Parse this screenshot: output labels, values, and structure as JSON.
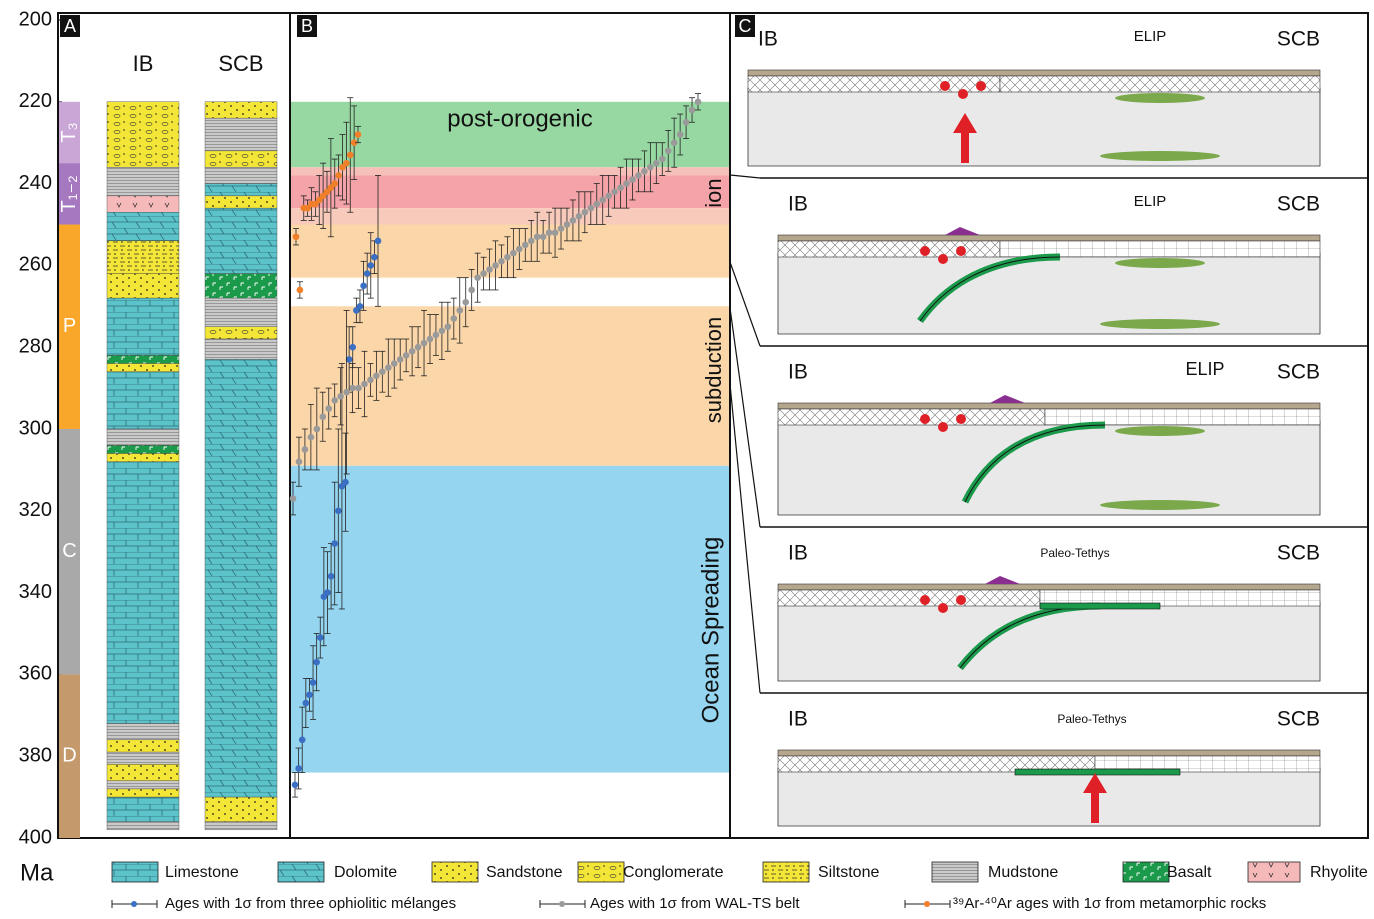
{
  "axis": {
    "unit": "Ma"
  },
  "panel_a": {
    "tag": "A",
    "periods": [
      {
        "label": "T₃",
        "from": 220,
        "to": 235,
        "color": "#c9a6d6"
      },
      {
        "label": "T₁₋₂",
        "from": 235,
        "to": 250,
        "color": "#a678c0"
      },
      {
        "label": "P",
        "from": 250,
        "to": 300,
        "color": "#f9a72b"
      },
      {
        "label": "C",
        "from": 300,
        "to": 360,
        "color": "#a9a9a9"
      },
      {
        "label": "D",
        "from": 360,
        "to": 400,
        "color": "#c49a6c"
      }
    ],
    "columns": [
      {
        "name": "IB",
        "layers": [
          {
            "top": 220,
            "bottom": 236,
            "rock": "Conglomerate"
          },
          {
            "top": 236,
            "bottom": 243,
            "rock": "Mudstone"
          },
          {
            "top": 243,
            "bottom": 247,
            "rock": "Rhyolite"
          },
          {
            "top": 247,
            "bottom": 254,
            "rock": "Dolomite"
          },
          {
            "top": 254,
            "bottom": 262,
            "rock": "Siltstone"
          },
          {
            "top": 262,
            "bottom": 268,
            "rock": "Sandstone"
          },
          {
            "top": 268,
            "bottom": 282,
            "rock": "Limestone"
          },
          {
            "top": 282,
            "bottom": 284,
            "rock": "Basalt"
          },
          {
            "top": 284,
            "bottom": 286,
            "rock": "Sandstone"
          },
          {
            "top": 286,
            "bottom": 300,
            "rock": "Limestone"
          },
          {
            "top": 300,
            "bottom": 304,
            "rock": "Mudstone"
          },
          {
            "top": 304,
            "bottom": 306,
            "rock": "Basalt"
          },
          {
            "top": 306,
            "bottom": 308,
            "rock": "Sandstone"
          },
          {
            "top": 308,
            "bottom": 372,
            "rock": "Limestone"
          },
          {
            "top": 372,
            "bottom": 376,
            "rock": "Mudstone"
          },
          {
            "top": 376,
            "bottom": 379,
            "rock": "Sandstone"
          },
          {
            "top": 379,
            "bottom": 382,
            "rock": "Mudstone"
          },
          {
            "top": 382,
            "bottom": 386,
            "rock": "Sandstone"
          },
          {
            "top": 386,
            "bottom": 388,
            "rock": "Mudstone"
          },
          {
            "top": 388,
            "bottom": 390,
            "rock": "Sandstone"
          },
          {
            "top": 390,
            "bottom": 396,
            "rock": "Limestone"
          },
          {
            "top": 396,
            "bottom": 398,
            "rock": "Mudstone"
          }
        ]
      },
      {
        "name": "SCB",
        "layers": [
          {
            "top": 220,
            "bottom": 224,
            "rock": "Sandstone"
          },
          {
            "top": 224,
            "bottom": 232,
            "rock": "Mudstone"
          },
          {
            "top": 232,
            "bottom": 236,
            "rock": "Conglomerate"
          },
          {
            "top": 236,
            "bottom": 240,
            "rock": "Mudstone"
          },
          {
            "top": 240,
            "bottom": 243,
            "rock": "Dolomite"
          },
          {
            "top": 243,
            "bottom": 246,
            "rock": "Sandstone"
          },
          {
            "top": 246,
            "bottom": 262,
            "rock": "Dolomite"
          },
          {
            "top": 262,
            "bottom": 268,
            "rock": "Basalt"
          },
          {
            "top": 268,
            "bottom": 275,
            "rock": "Mudstone"
          },
          {
            "top": 275,
            "bottom": 278,
            "rock": "Conglomerate"
          },
          {
            "top": 278,
            "bottom": 283,
            "rock": "Mudstone"
          },
          {
            "top": 283,
            "bottom": 390,
            "rock": "Dolomite"
          },
          {
            "top": 390,
            "bottom": 396,
            "rock": "Sandstone"
          },
          {
            "top": 396,
            "bottom": 398,
            "rock": "Mudstone"
          }
        ]
      }
    ]
  },
  "chart_data": {
    "type": "errorbar",
    "tag": "B",
    "ylim": [
      200,
      400
    ],
    "yticks": [
      200,
      220,
      240,
      260,
      280,
      300,
      320,
      340,
      360,
      380,
      400
    ],
    "bands": [
      {
        "from": 220,
        "to": 236,
        "color": "#97d8a2",
        "label": "post-orogenic"
      },
      {
        "from": 236,
        "to": 238,
        "color": "#f6c0b8"
      },
      {
        "from": 238,
        "to": 246,
        "color": "#f4a3a8",
        "label": "Collision"
      },
      {
        "from": 246,
        "to": 250,
        "color": "#f8cabc"
      },
      {
        "from": 250,
        "to": 263,
        "color": "#fbd6a8"
      },
      {
        "from": 270,
        "to": 309,
        "color": "#fbd6a8",
        "label": "subduction"
      },
      {
        "from": 309,
        "to": 384,
        "color": "#95d5ef",
        "label": "Ocean Spreading"
      }
    ],
    "series": [
      {
        "name": "Ages with 1σ from three ophiolitic mélanges",
        "color": "#3b6fc4",
        "values": [
          387,
          383,
          376,
          367,
          365,
          362,
          357,
          351,
          341,
          340,
          336,
          328,
          320,
          314,
          313,
          283,
          280,
          271,
          270,
          265,
          262,
          260,
          258,
          254
        ],
        "errors": [
          3,
          5,
          8,
          6,
          4,
          9,
          7,
          5,
          12,
          10,
          8,
          15,
          20,
          30,
          12,
          8,
          5,
          3,
          4,
          6,
          5,
          8,
          4,
          16
        ]
      },
      {
        "name": "Ages with 1σ from WAL-TS belt",
        "color": "#9a9a9a",
        "values": [
          317,
          308,
          305,
          302,
          300,
          297,
          295,
          293,
          292,
          291,
          290,
          290,
          289,
          288,
          287,
          286,
          285,
          284,
          283,
          282,
          281,
          280,
          279,
          278,
          277,
          276,
          275,
          273,
          271,
          269,
          266,
          263,
          262,
          261,
          260,
          259,
          258,
          257,
          256,
          255,
          254,
          253,
          253,
          252,
          252,
          251,
          250,
          249,
          248,
          247,
          246,
          245,
          244,
          243,
          242,
          241,
          240,
          239,
          238,
          237,
          236,
          235,
          234,
          232,
          230,
          228,
          225,
          222,
          220
        ],
        "errors": [
          4,
          6,
          5,
          8,
          10,
          6,
          5,
          4,
          7,
          20,
          6,
          5,
          8,
          4,
          6,
          5,
          7,
          6,
          5,
          4,
          6,
          5,
          8,
          6,
          5,
          7,
          6,
          5,
          8,
          6,
          5,
          6,
          4,
          5,
          6,
          4,
          5,
          6,
          5,
          4,
          5,
          6,
          4,
          5,
          6,
          5,
          4,
          5,
          6,
          5,
          4,
          5,
          6,
          5,
          4,
          5,
          6,
          5,
          4,
          5,
          6,
          5,
          4,
          5,
          6,
          5,
          4,
          3,
          2
        ]
      },
      {
        "name": "³⁹Ar-⁴⁰Ar ages with 1σ from metamorphic rocks",
        "color": "#f07f2a",
        "values": [
          253,
          266,
          246,
          246,
          245,
          245,
          244,
          243,
          242,
          241,
          240,
          238,
          236,
          235,
          233,
          230,
          228
        ],
        "errors": [
          2,
          2,
          3,
          2,
          4,
          3,
          6,
          8,
          5,
          12,
          6,
          5,
          8,
          10,
          14,
          9,
          2
        ]
      }
    ]
  },
  "panel_c": {
    "tag": "C",
    "sections": [
      {
        "left": "IB",
        "right": "SCB",
        "label": "ELIP"
      },
      {
        "left": "IB",
        "right": "SCB",
        "label": "ELIP"
      },
      {
        "left": "IB",
        "right": "SCB",
        "label": "ELIP"
      },
      {
        "left": "IB",
        "right": "SCB",
        "label": "Paleo-Tethys"
      },
      {
        "left": "IB",
        "right": "SCB",
        "label": "Paleo-Tethys"
      }
    ]
  },
  "legend": {
    "lithologies": [
      "Limestone",
      "Dolomite",
      "Sandstone",
      "Conglomerate",
      "Siltstone",
      "Mudstone",
      "Basalt",
      "Rhyolite"
    ]
  }
}
